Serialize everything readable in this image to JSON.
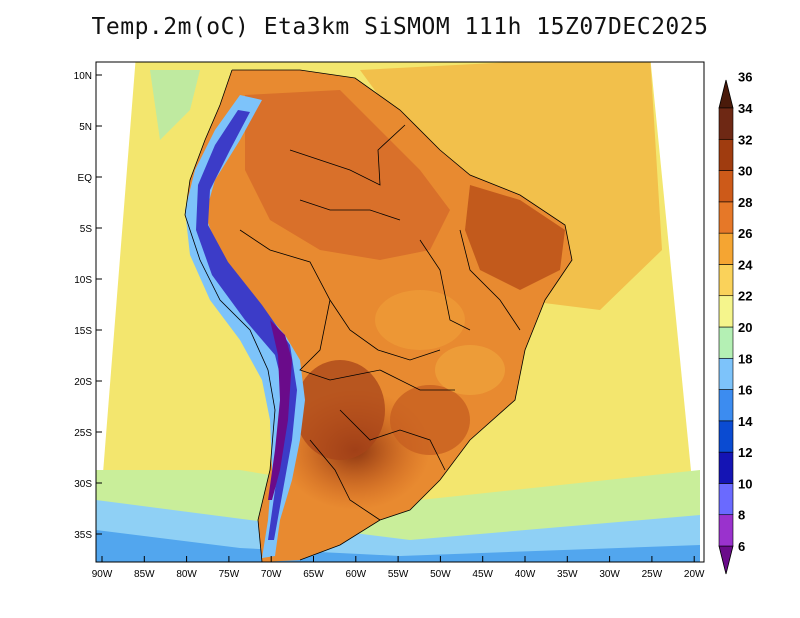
{
  "title": "Temp.2m(oC) Eta3km SiSMOM 111h 15Z07DEC2025",
  "map": {
    "lat_labels": [
      "10N",
      "5N",
      "EQ",
      "5S",
      "10S",
      "15S",
      "20S",
      "25S",
      "30S",
      "35S"
    ],
    "lon_labels": [
      "90W",
      "85W",
      "80W",
      "75W",
      "70W",
      "65W",
      "60W",
      "55W",
      "50W",
      "45W",
      "40W",
      "35W",
      "30W",
      "25W",
      "20W"
    ]
  },
  "colorbar": {
    "levels": [
      "6",
      "8",
      "10",
      "12",
      "14",
      "16",
      "18",
      "20",
      "22",
      "24",
      "26",
      "28",
      "30",
      "32",
      "34",
      "36"
    ],
    "colors": [
      "#6a0b8a",
      "#9a32cd",
      "#6a6aff",
      "#1414b4",
      "#0a4bd2",
      "#3c8cf0",
      "#7dc3fa",
      "#b4f0b4",
      "#f5f58c",
      "#fad25a",
      "#f5a532",
      "#e67828",
      "#cd5a19",
      "#a03c0f",
      "#6e2814",
      "#4a1a0a"
    ]
  }
}
